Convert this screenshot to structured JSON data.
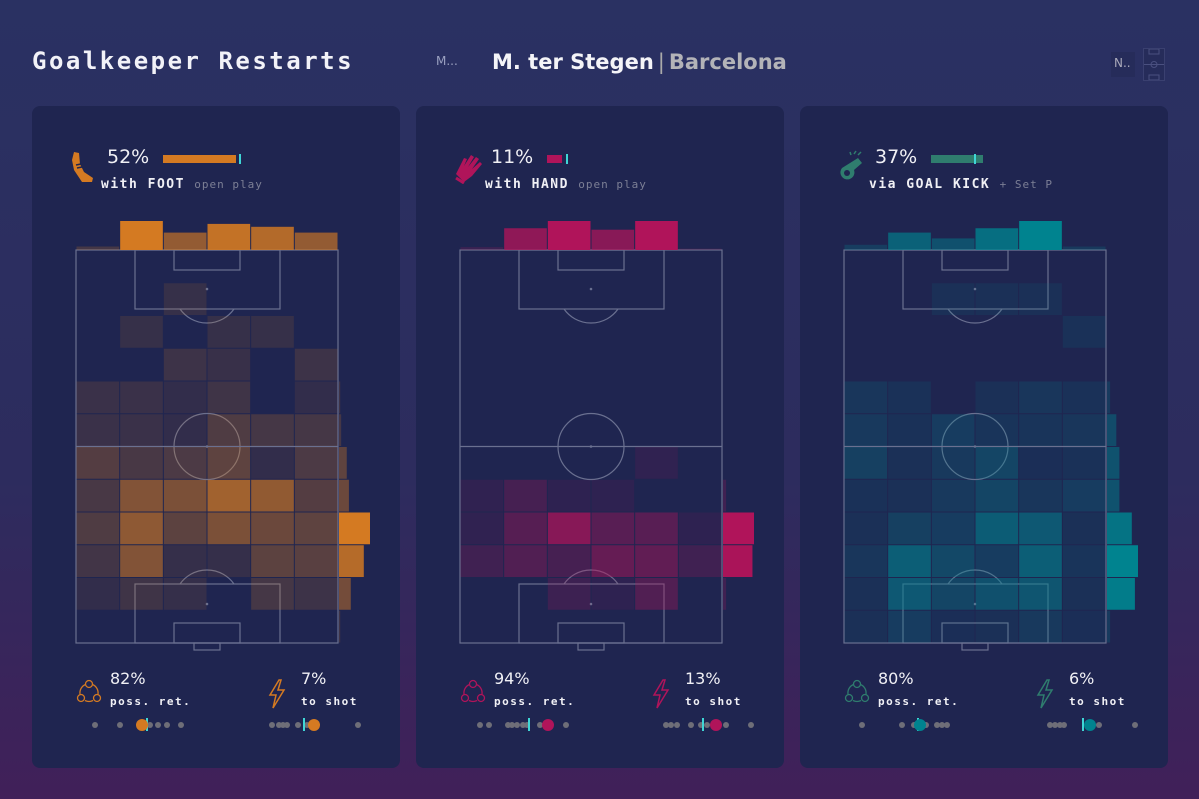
{
  "header": {
    "title": "Goalkeeper Restarts",
    "menu_label": "M...",
    "player": "M. ter Stegen",
    "separator": "|",
    "team": "Barcelona",
    "selector_label": "N.."
  },
  "panels": [
    {
      "id": "foot",
      "icon": "boot-icon",
      "color": "#d47a22",
      "heat_color": "#d47a22",
      "pct": "52%",
      "share": 52,
      "avg_share": 54,
      "label": "with FOOT",
      "sublabel": "open play",
      "heat": [
        [
          0,
          0,
          0,
          0,
          0,
          0
        ],
        [
          0,
          0,
          0.06,
          0,
          0,
          0
        ],
        [
          0,
          0.06,
          0,
          0.06,
          0.06,
          0
        ],
        [
          0,
          0,
          0.1,
          0.07,
          0,
          0.1
        ],
        [
          0.08,
          0.08,
          0.04,
          0.12,
          0,
          0.03
        ],
        [
          0.08,
          0.08,
          0.04,
          0.22,
          0.15,
          0.15
        ],
        [
          0.25,
          0.18,
          0.2,
          0.32,
          0.04,
          0.2
        ],
        [
          0.18,
          0.55,
          0.5,
          0.75,
          0.65,
          0.25
        ],
        [
          0.22,
          0.62,
          0.3,
          0.5,
          0.4,
          0.32
        ],
        [
          0.14,
          0.55,
          0.05,
          0.05,
          0.3,
          0.28
        ],
        [
          0.03,
          0.12,
          0.05,
          0,
          0.15,
          0.1
        ],
        [
          0,
          0,
          0,
          0,
          0,
          0
        ]
      ],
      "top": [
        0.12,
        1.0,
        0.6,
        0.9,
        0.8,
        0.6
      ],
      "side": [
        0,
        0,
        0,
        0,
        0.04,
        0.07,
        0.25,
        0.32,
        1.0,
        0.8,
        0.38,
        0.04
      ],
      "stats": [
        {
          "icon": "possession-cycle-icon",
          "value": "82%",
          "label": "poss. ret.",
          "dots": [
            8,
            33,
            63,
            71,
            80,
            94
          ],
          "player": 55,
          "avg": 60
        },
        {
          "icon": "lightning-icon",
          "value": "7%",
          "label": "to shot",
          "dots": [
            5,
            12,
            16,
            20,
            31,
            40,
            91
          ],
          "player": 47,
          "avg": 37
        }
      ]
    },
    {
      "id": "hand",
      "icon": "glove-icon",
      "color": "#b0145a",
      "heat_color": "#b0145a",
      "pct": "11%",
      "share": 11,
      "avg_share": 13.5,
      "label": "with HAND",
      "sublabel": "open play",
      "heat": [
        [
          0,
          0,
          0,
          0,
          0,
          0
        ],
        [
          0,
          0,
          0,
          0,
          0,
          0
        ],
        [
          0,
          0,
          0,
          0,
          0,
          0
        ],
        [
          0,
          0,
          0,
          0,
          0,
          0
        ],
        [
          0,
          0,
          0,
          0,
          0,
          0
        ],
        [
          0,
          0,
          0,
          0,
          0,
          0
        ],
        [
          0,
          0,
          0,
          0,
          0.05,
          0
        ],
        [
          0.05,
          0.22,
          0.03,
          0.03,
          0,
          0
        ],
        [
          0.05,
          0.35,
          0.75,
          0.38,
          0.38,
          0.03
        ],
        [
          0.18,
          0.32,
          0.22,
          0.48,
          0.45,
          0.18
        ],
        [
          0,
          0,
          0.15,
          0.04,
          0.32,
          0
        ],
        [
          0,
          0,
          0,
          0,
          0,
          0
        ]
      ],
      "top": [
        0.1,
        0.75,
        1.0,
        0.7,
        1.0,
        0.05
      ],
      "side": [
        0,
        0,
        0,
        0,
        0,
        0,
        0,
        0.1,
        1.0,
        0.95,
        0.1,
        0
      ],
      "stats": [
        {
          "icon": "possession-cycle-icon",
          "value": "94%",
          "label": "poss. ret.",
          "dots": [
            9,
            18,
            37,
            41,
            46,
            52,
            56,
            69,
            95
          ],
          "player": 77,
          "avg": 58
        },
        {
          "icon": "lightning-icon",
          "value": "13%",
          "label": "to shot",
          "dots": [
            15,
            20,
            26,
            40,
            50,
            56,
            75,
            100
          ],
          "player": 65,
          "avg": 52
        }
      ]
    },
    {
      "id": "goalkick",
      "icon": "whistle-icon",
      "color": "#2f7d6e",
      "heat_color": "#00838f",
      "pct": "37%",
      "share": 37,
      "avg_share": 31,
      "label": "via GOAL KICK",
      "sublabel": "+ Set P",
      "heat": [
        [
          0,
          0,
          0,
          0,
          0,
          0
        ],
        [
          0,
          0,
          0.05,
          0.05,
          0.05,
          0
        ],
        [
          0,
          0,
          0,
          0,
          0,
          0.07
        ],
        [
          0,
          0,
          0,
          0,
          0,
          0
        ],
        [
          0.12,
          0.07,
          0,
          0.05,
          0.12,
          0.07
        ],
        [
          0.15,
          0.07,
          0.2,
          0.1,
          0.1,
          0.12
        ],
        [
          0.25,
          0.05,
          0.15,
          0.3,
          0.03,
          0.07
        ],
        [
          0.07,
          0.05,
          0.15,
          0.3,
          0.12,
          0.2
        ],
        [
          0.05,
          0.25,
          0.2,
          0.6,
          0.55,
          0.05
        ],
        [
          0.12,
          0.62,
          0.35,
          0.2,
          0.62,
          0.1
        ],
        [
          0.05,
          0.55,
          0.3,
          0.45,
          0.5,
          0.05
        ],
        [
          0.05,
          0.2,
          0.03,
          0.05,
          0.15,
          0.03
        ]
      ],
      "top": [
        0.18,
        0.6,
        0.4,
        0.75,
        1.0,
        0.12
      ],
      "side": [
        0,
        0,
        0,
        0,
        0.1,
        0.3,
        0.4,
        0.4,
        0.8,
        1.0,
        0.9,
        0.1
      ],
      "stats": [
        {
          "icon": "possession-cycle-icon",
          "value": "80%",
          "label": "poss. ret.",
          "dots": [
            7,
            47,
            59,
            71,
            82,
            87,
            92
          ],
          "player": 65,
          "avg": 63
        },
        {
          "icon": "lightning-icon",
          "value": "6%",
          "label": "to shot",
          "dots": [
            15,
            20,
            25,
            29,
            64,
            100
          ],
          "player": 55,
          "avg": 48
        }
      ]
    }
  ]
}
